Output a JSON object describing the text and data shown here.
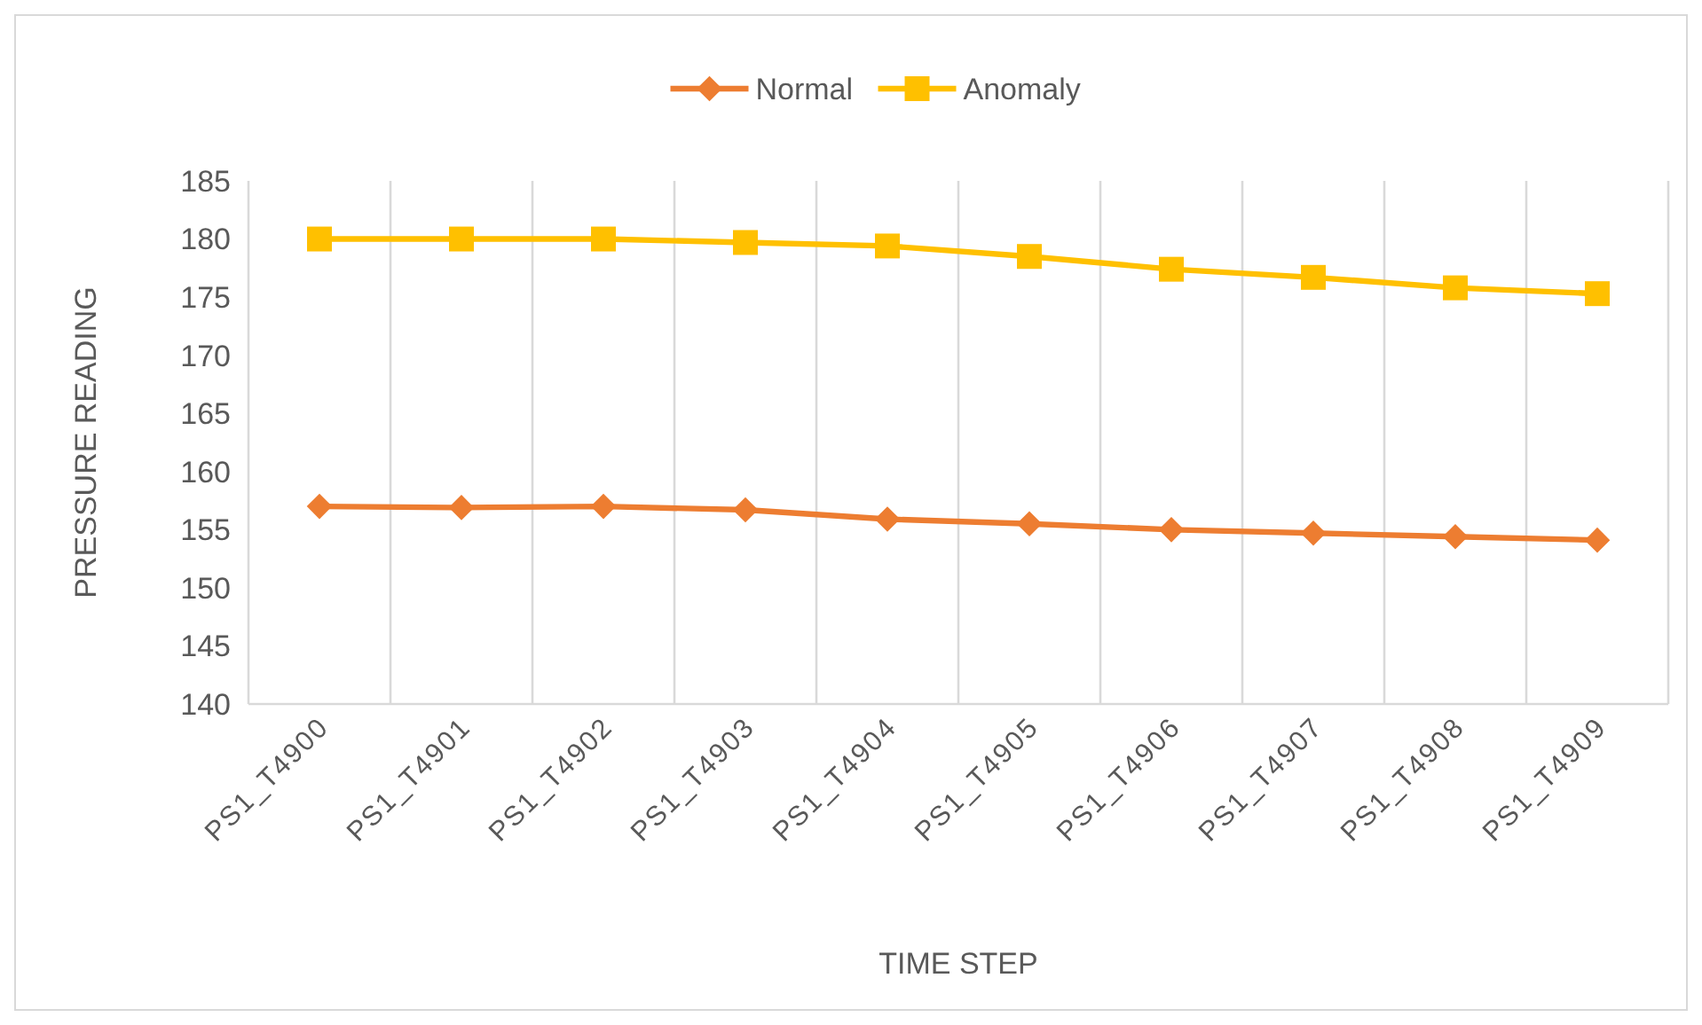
{
  "chart_data": {
    "type": "line",
    "xlabel": "TIME STEP",
    "ylabel": "PRESSURE READING",
    "categories": [
      "PS1_T4900",
      "PS1_T4901",
      "PS1_T4902",
      "PS1_T4903",
      "PS1_T4904",
      "PS1_T4905",
      "PS1_T4906",
      "PS1_T4907",
      "PS1_T4908",
      "PS1_T4909"
    ],
    "series": [
      {
        "name": "Normal",
        "color": "#ed7d31",
        "marker": "diamond",
        "values": [
          157.0,
          156.9,
          157.0,
          156.7,
          155.9,
          155.5,
          155.0,
          154.7,
          154.4,
          154.1
        ]
      },
      {
        "name": "Anomaly",
        "color": "#ffc000",
        "marker": "square",
        "values": [
          180.0,
          180.0,
          180.0,
          179.7,
          179.4,
          178.5,
          177.4,
          176.7,
          175.8,
          175.3
        ]
      }
    ],
    "ylim": [
      140,
      185
    ],
    "yticks": [
      140,
      145,
      150,
      155,
      160,
      165,
      170,
      175,
      180,
      185
    ],
    "grid": "x",
    "legend": "top",
    "line_style": "solid"
  }
}
